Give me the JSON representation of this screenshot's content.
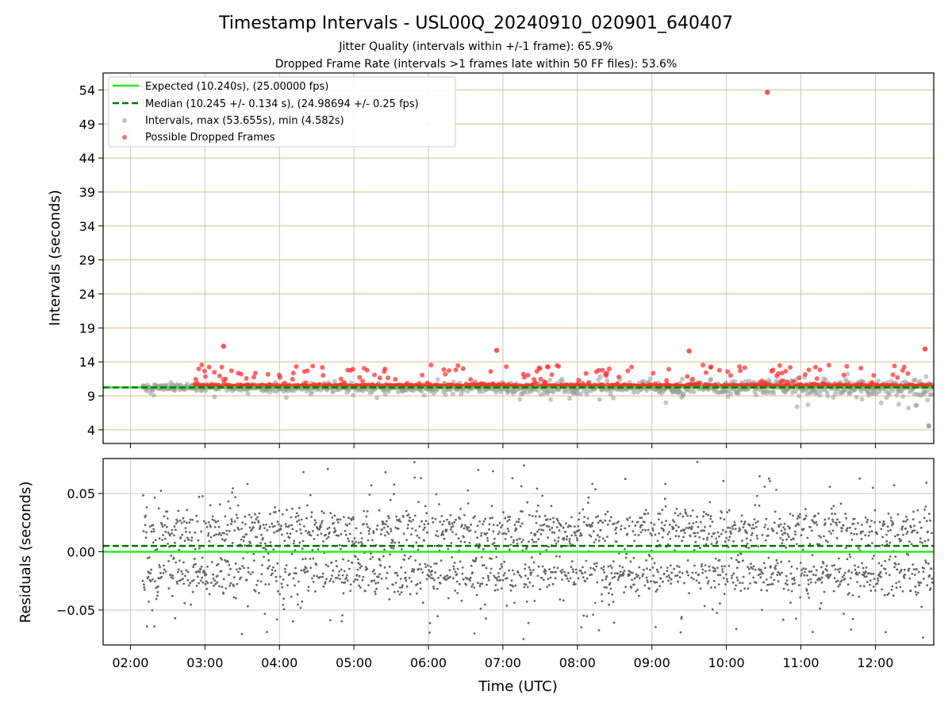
{
  "title": "Timestamp Intervals - USL00Q_20240910_020901_640407",
  "subtitles": [
    "Jitter Quality (intervals within +/-1 frame): 65.9%",
    "Dropped Frame Rate (intervals >1 frames late within 50 FF files): 53.6%"
  ],
  "colors": {
    "expected": "#22ee22",
    "median": "#007700",
    "intervals": "#999999",
    "dropped": "#ff3333",
    "residuals": "#666666",
    "hgrid_top": "#d8c080",
    "grid": "#c8c8c8"
  },
  "chart_data": [
    {
      "type": "scatter",
      "ylabel": "Intervals (seconds)",
      "xlim": [
        "01:38",
        "12:47"
      ],
      "ylim": [
        2,
        56.5
      ],
      "yticks": [
        "4",
        "9",
        "14",
        "19",
        "24",
        "29",
        "34",
        "39",
        "44",
        "49",
        "54"
      ],
      "expected_interval": 10.24,
      "median_interval": 10.245,
      "legend_position": "upper-left",
      "legend": [
        "Expected (10.240s), (25.00000 fps)",
        "Median (10.245 +/- 0.134 s), (24.98694 +/- 0.25 fps)",
        "Intervals, max (53.655s), min (4.582s)",
        "Possible Dropped Frames"
      ],
      "outliers": [
        {
          "time": "10:33",
          "value": 53.655,
          "series": "Possible Dropped Frames"
        },
        {
          "time": "03:15",
          "value": 16.3,
          "series": "Possible Dropped Frames"
        },
        {
          "time": "09:30",
          "value": 15.6,
          "series": "Possible Dropped Frames"
        },
        {
          "time": "06:55",
          "value": 15.7,
          "series": "Possible Dropped Frames"
        },
        {
          "time": "12:40",
          "value": 15.9,
          "series": "Possible Dropped Frames"
        },
        {
          "time": "12:43",
          "value": 4.582,
          "series": "Intervals"
        }
      ]
    },
    {
      "type": "scatter",
      "ylabel": "Residuals (seconds)",
      "xlabel": "Time (UTC)",
      "xlim": [
        "01:38",
        "12:47"
      ],
      "ylim": [
        -0.08,
        0.08
      ],
      "yticks": [
        "−0.05",
        "0.00",
        "0.05"
      ],
      "expected_residual": 0.0,
      "median_residual": 0.005,
      "xticks": [
        "02:00",
        "03:00",
        "04:00",
        "05:00",
        "06:00",
        "07:00",
        "08:00",
        "09:00",
        "10:00",
        "11:00",
        "12:00"
      ]
    }
  ]
}
